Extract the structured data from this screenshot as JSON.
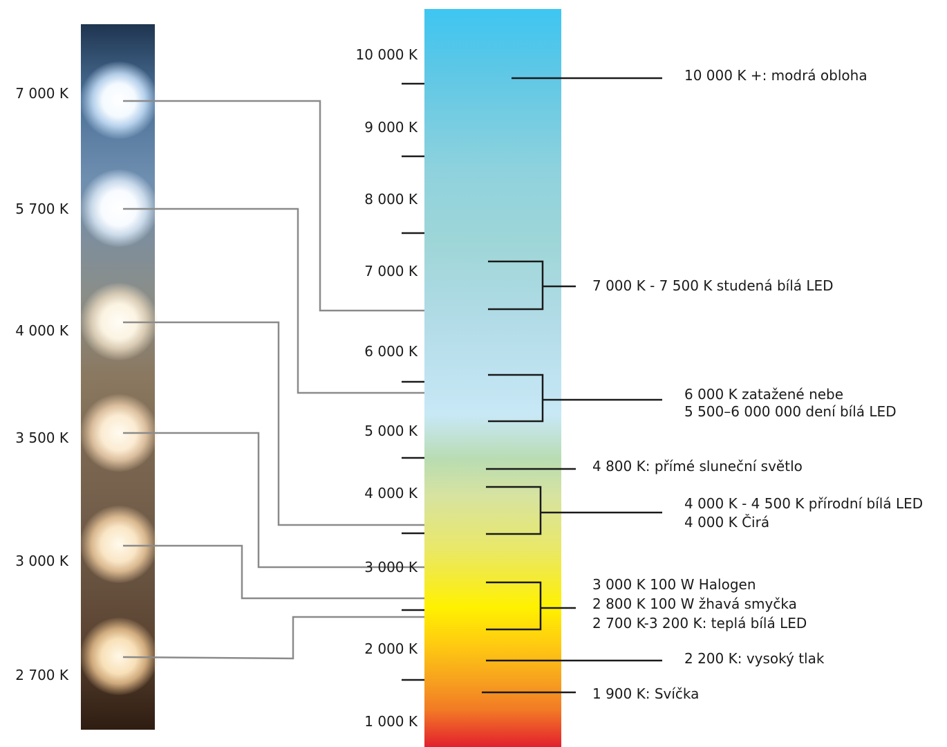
{
  "strip_labels": [
    "7 000 K",
    "5 700 K",
    "4 000 K",
    "3 500 K",
    "3 000 K",
    "2 700 K"
  ],
  "scale_labels": [
    "10 000 K",
    "9 000 K",
    "8 000 K",
    "7 000 K",
    "6 000 K",
    "5 000 K",
    "4 000 K",
    "3 000 K",
    "2 000 K",
    "1 000 K"
  ],
  "annotations": {
    "blue_sky": "10 000 K +: modrá obloha",
    "cool_white": "7 000 K - 7 500 K studená bílá LED",
    "overcast": "6 000 K zatažené nebe",
    "day_white": "5 500–6 000 000 dení bílá LED",
    "sunlight": "4 800 K: přímé sluneční světlo",
    "natural_white": "4 000 K - 4 500 K přírodní bílá LED",
    "clear": "4 000 K Čirá",
    "halogen": "3 000 K 100 W Halogen",
    "incandescent": "2 800 K 100 W žhavá smyčka",
    "warm_white": "2 700 K-3 200 K: teplá bílá LED",
    "high_pressure": "2 200 K: vysoký tlak",
    "candle": "1 900 K: Svíčka"
  },
  "colors": {
    "connector": "#8a8a8a",
    "bracket": "#1a1a1a"
  }
}
